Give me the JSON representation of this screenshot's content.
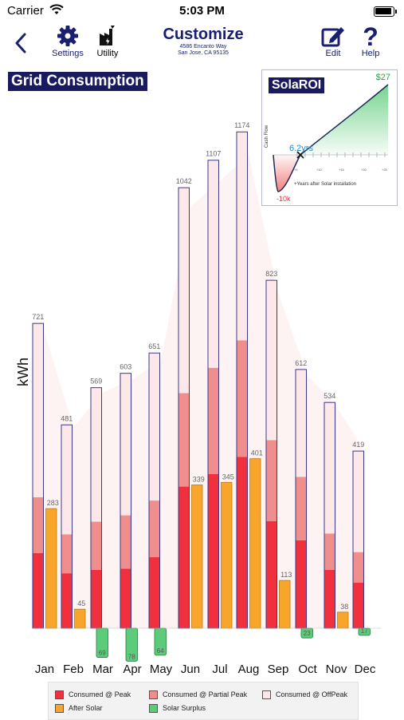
{
  "status_bar": {
    "carrier": "Carrier",
    "time": "5:03 PM"
  },
  "nav": {
    "settings_label": "Settings",
    "utility_label": "Utility",
    "title": "Customize",
    "address_line1": "4586 Encanto Way",
    "address_line2": "San Jose, CA 95135",
    "edit_label": "Edit",
    "help_label": "Help"
  },
  "section_label": "Grid Consumption",
  "colors": {
    "peak": "#f0303c",
    "partial_peak": "#f08e8e",
    "offpeak": "#fce8e8",
    "after_solar": "#f7a52b",
    "solar_surplus": "#5dcc7a",
    "outline": "#3a3a8c"
  },
  "roi_card": {
    "title": "SolaROI",
    "max_label": "$27",
    "payback_label": "6.2yrs",
    "min_label": "-10k",
    "y_axis_label": "Cash Flow",
    "x_axis_label": "+Years after Solar installation",
    "x_ticks": [
      "+5",
      "+10",
      "+15",
      "+20",
      "+25"
    ]
  },
  "chart_data": {
    "type": "bar",
    "ylabel": "kWh",
    "categories": [
      "Jan",
      "Feb",
      "Mar",
      "Apr",
      "May",
      "Jun",
      "Jul",
      "Aug",
      "Sep",
      "Oct",
      "Nov",
      "Dec"
    ],
    "totals": [
      721,
      481,
      569,
      603,
      651,
      1042,
      1107,
      1174,
      823,
      612,
      534,
      419
    ],
    "series": [
      {
        "name": "Consumed @ Peak",
        "values": [
          178,
          130,
          138,
          141,
          168,
          335,
          365,
          405,
          253,
          208,
          138,
          108
        ]
      },
      {
        "name": "Consumed @ Partial Peak",
        "values": [
          132,
          92,
          114,
          126,
          134,
          221,
          251,
          276,
          192,
          150,
          86,
          72
        ]
      },
      {
        "name": "Consumed @ OffPeak",
        "values": [
          411,
          259,
          317,
          336,
          349,
          486,
          491,
          493,
          378,
          254,
          310,
          239
        ]
      },
      {
        "name": "After Solar",
        "values": [
          283,
          45,
          null,
          null,
          null,
          339,
          345,
          401,
          113,
          null,
          38,
          null
        ]
      },
      {
        "name": "Solar Surplus",
        "values": [
          null,
          null,
          -69,
          -78,
          -64,
          null,
          null,
          null,
          null,
          -23,
          null,
          -17
        ]
      }
    ],
    "legend": {
      "peak": "Consumed @ Peak",
      "partial_peak": "Consumed @ Partial Peak",
      "offpeak": "Consumed @ OffPeak",
      "after_solar": "After Solar",
      "solar_surplus": "Solar Surplus"
    }
  }
}
